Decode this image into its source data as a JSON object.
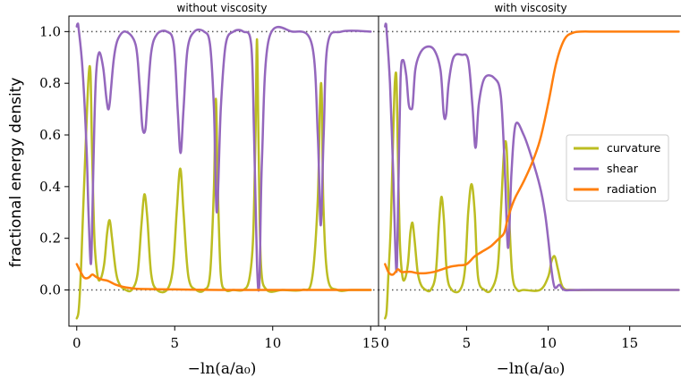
{
  "ylabel": "fractional energy density",
  "chart_data": [
    {
      "type": "line",
      "title": "without viscosity",
      "xlabel": "−ln(a/a₀)",
      "xlim": [
        -0.4,
        15.4
      ],
      "ylim": [
        -0.14,
        1.06
      ],
      "xticks": [
        0,
        5,
        10,
        15
      ],
      "yticks": [
        0.0,
        0.2,
        0.4,
        0.6,
        0.8,
        1.0
      ],
      "reference_lines_y": [
        0.0,
        1.0
      ],
      "grid": false,
      "series": [
        {
          "name": "curvature",
          "color": "#bcbd22",
          "x": [
            0,
            0.1,
            0.2,
            0.3,
            0.45,
            0.6,
            0.7,
            0.78,
            0.9,
            1.05,
            1.2,
            1.4,
            1.55,
            1.68,
            1.8,
            2.0,
            2.2,
            2.5,
            2.8,
            3.1,
            3.3,
            3.45,
            3.6,
            3.8,
            4.1,
            4.6,
            4.9,
            5.1,
            5.28,
            5.45,
            5.7,
            6.1,
            6.5,
            6.8,
            7.0,
            7.1,
            7.2,
            7.35,
            7.6,
            8.0,
            8.5,
            8.8,
            9.0,
            9.12,
            9.2,
            9.28,
            9.4,
            9.7,
            10.5,
            11.5,
            12.0,
            12.3,
            12.42,
            12.5,
            12.58,
            12.8,
            13.3,
            14.0,
            15.0
          ],
          "y": [
            -0.11,
            -0.08,
            0.05,
            0.25,
            0.55,
            0.82,
            0.84,
            0.55,
            0.2,
            0.06,
            0.04,
            0.1,
            0.22,
            0.27,
            0.2,
            0.07,
            0.02,
            0.0,
            0.0,
            0.06,
            0.25,
            0.37,
            0.28,
            0.06,
            0.0,
            0.0,
            0.08,
            0.3,
            0.47,
            0.3,
            0.05,
            0.0,
            0.0,
            0.06,
            0.4,
            0.74,
            0.4,
            0.06,
            0.0,
            0.0,
            0.0,
            0.04,
            0.2,
            0.6,
            0.97,
            0.55,
            0.1,
            0.0,
            0.0,
            0.0,
            0.04,
            0.35,
            0.74,
            0.76,
            0.35,
            0.05,
            0.0,
            0.0,
            0.0
          ]
        },
        {
          "name": "shear",
          "color": "#9467bd",
          "x": [
            0,
            0.05,
            0.1,
            0.3,
            0.5,
            0.6,
            0.72,
            0.8,
            0.9,
            1.0,
            1.15,
            1.35,
            1.5,
            1.6,
            1.68,
            1.75,
            1.9,
            2.1,
            2.5,
            3.0,
            3.2,
            3.35,
            3.5,
            3.6,
            3.8,
            4.1,
            4.6,
            4.95,
            5.15,
            5.3,
            5.45,
            5.65,
            6.0,
            6.5,
            6.8,
            7.0,
            7.15,
            7.35,
            7.6,
            8.0,
            8.5,
            8.9,
            9.05,
            9.2,
            9.32,
            9.45,
            9.8,
            11.0,
            12.0,
            12.3,
            12.45,
            12.6,
            12.8,
            13.5,
            15.0
          ],
          "y": [
            1.02,
            1.03,
            1.01,
            0.85,
            0.55,
            0.3,
            0.1,
            0.3,
            0.65,
            0.85,
            0.92,
            0.86,
            0.75,
            0.7,
            0.72,
            0.78,
            0.9,
            0.97,
            1.0,
            0.95,
            0.8,
            0.63,
            0.62,
            0.72,
            0.92,
            0.99,
            1.0,
            0.95,
            0.7,
            0.53,
            0.7,
            0.93,
            1.0,
            1.0,
            0.95,
            0.7,
            0.3,
            0.7,
            0.95,
            1.0,
            1.0,
            0.95,
            0.6,
            0.1,
            0.03,
            0.5,
            0.97,
            1.0,
            0.95,
            0.6,
            0.25,
            0.6,
            0.95,
            1.0,
            1.0
          ]
        },
        {
          "name": "radiation",
          "color": "#ff7f0e",
          "x": [
            0,
            0.2,
            0.35,
            0.5,
            0.65,
            0.8,
            1.0,
            1.3,
            1.6,
            2.0,
            2.5,
            3.0,
            4.0,
            5.0,
            6.0,
            8.0,
            10.0,
            12.0,
            15.0
          ],
          "y": [
            0.1,
            0.07,
            0.05,
            0.045,
            0.05,
            0.06,
            0.05,
            0.04,
            0.035,
            0.02,
            0.01,
            0.005,
            0.003,
            0.002,
            0.001,
            0.0,
            0.0,
            0.0,
            0.0
          ]
        }
      ]
    },
    {
      "type": "line",
      "title": "with viscosity",
      "xlabel": "−ln(a/a₀)",
      "xlim": [
        -0.4,
        18.2
      ],
      "ylim": [
        -0.14,
        1.06
      ],
      "xticks": [
        0,
        5,
        10,
        15
      ],
      "yticks": [
        0.0,
        0.2,
        0.4,
        0.6,
        0.8,
        1.0
      ],
      "reference_lines_y": [
        0.0,
        1.0
      ],
      "grid": false,
      "legend": {
        "position": "right",
        "entries": [
          "curvature",
          "shear",
          "radiation"
        ]
      },
      "series": [
        {
          "name": "curvature",
          "color": "#bcbd22",
          "x": [
            0,
            0.1,
            0.2,
            0.35,
            0.5,
            0.6,
            0.7,
            0.78,
            0.9,
            1.05,
            1.2,
            1.4,
            1.55,
            1.68,
            1.8,
            2.0,
            2.2,
            2.5,
            2.8,
            3.1,
            3.3,
            3.45,
            3.6,
            3.8,
            4.1,
            4.6,
            4.9,
            5.1,
            5.3,
            5.5,
            5.7,
            6.1,
            6.5,
            6.9,
            7.1,
            7.3,
            7.45,
            7.6,
            7.8,
            8.1,
            8.5,
            9.5,
            10.0,
            10.2,
            10.4,
            10.6,
            10.9,
            11.5,
            13.0,
            18.0
          ],
          "y": [
            -0.11,
            -0.08,
            0.05,
            0.25,
            0.6,
            0.8,
            0.82,
            0.55,
            0.2,
            0.06,
            0.04,
            0.1,
            0.22,
            0.26,
            0.2,
            0.07,
            0.02,
            0.0,
            0.0,
            0.06,
            0.25,
            0.36,
            0.28,
            0.06,
            0.0,
            0.0,
            0.08,
            0.3,
            0.41,
            0.3,
            0.05,
            0.0,
            0.0,
            0.08,
            0.3,
            0.54,
            0.55,
            0.3,
            0.06,
            0.0,
            0.0,
            0.0,
            0.05,
            0.11,
            0.13,
            0.08,
            0.01,
            0.0,
            0.0,
            0.0
          ]
        },
        {
          "name": "shear",
          "color": "#9467bd",
          "x": [
            0,
            0.05,
            0.1,
            0.3,
            0.5,
            0.62,
            0.72,
            0.82,
            0.95,
            1.1,
            1.3,
            1.45,
            1.6,
            1.7,
            1.85,
            2.1,
            2.5,
            3.0,
            3.4,
            3.6,
            3.75,
            3.9,
            4.2,
            4.7,
            5.1,
            5.35,
            5.55,
            5.75,
            6.1,
            6.7,
            7.1,
            7.35,
            7.5,
            7.6,
            7.75,
            8.0,
            8.5,
            9.0,
            9.5,
            9.8,
            10.0,
            10.2,
            10.4,
            10.7,
            11.0,
            12.0,
            18.0
          ],
          "y": [
            1.02,
            1.03,
            1.0,
            0.8,
            0.45,
            0.18,
            0.08,
            0.4,
            0.82,
            0.89,
            0.83,
            0.72,
            0.7,
            0.72,
            0.85,
            0.91,
            0.94,
            0.93,
            0.85,
            0.68,
            0.68,
            0.8,
            0.9,
            0.91,
            0.89,
            0.72,
            0.55,
            0.72,
            0.82,
            0.82,
            0.75,
            0.45,
            0.19,
            0.2,
            0.45,
            0.64,
            0.6,
            0.51,
            0.4,
            0.3,
            0.2,
            0.08,
            0.01,
            0.02,
            0.0,
            0.0,
            0.0
          ]
        },
        {
          "name": "radiation",
          "color": "#ff7f0e",
          "x": [
            0,
            0.2,
            0.35,
            0.5,
            0.65,
            0.8,
            1.0,
            1.3,
            1.6,
            2.0,
            2.5,
            3.0,
            3.5,
            4.0,
            4.5,
            5.0,
            5.5,
            6.0,
            6.5,
            7.0,
            7.3,
            7.5,
            7.8,
            8.0,
            8.5,
            9.0,
            9.5,
            10.0,
            10.5,
            11.0,
            11.5,
            12.0,
            13.0,
            15.0,
            18.0
          ],
          "y": [
            0.1,
            0.07,
            0.06,
            0.06,
            0.07,
            0.08,
            0.07,
            0.07,
            0.07,
            0.065,
            0.065,
            0.07,
            0.08,
            0.09,
            0.095,
            0.1,
            0.13,
            0.15,
            0.17,
            0.2,
            0.22,
            0.27,
            0.33,
            0.36,
            0.42,
            0.49,
            0.58,
            0.72,
            0.88,
            0.97,
            0.995,
            1.0,
            1.0,
            1.0,
            1.0
          ]
        }
      ]
    }
  ]
}
